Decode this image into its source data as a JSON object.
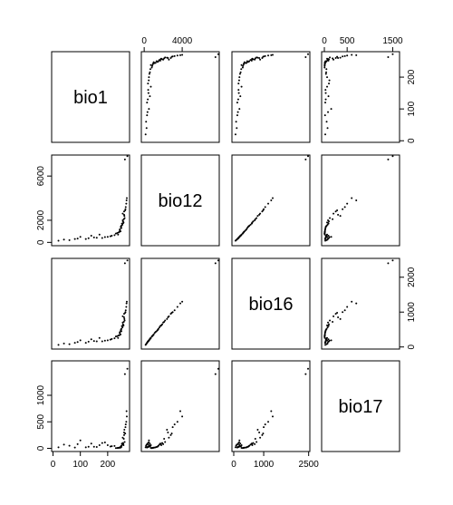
{
  "chart_data": {
    "type": "scatter_matrix",
    "color": "#000000",
    "variables": [
      {
        "name": "bio1",
        "lim": [
          -5,
          280
        ],
        "xticks": [
          0,
          100,
          200
        ],
        "yticks": [
          0,
          100,
          200
        ],
        "values": [
          250,
          255,
          260,
          245,
          240,
          265,
          258,
          262,
          230,
          248,
          252,
          268,
          270,
          255,
          244,
          238,
          260,
          263,
          215,
          200,
          180,
          150,
          120,
          90,
          60,
          40,
          20,
          100,
          140,
          170,
          250,
          256,
          259,
          261,
          247,
          243,
          235,
          266,
          269,
          272,
          225,
          210,
          190,
          160,
          130,
          80,
          254,
          257,
          264,
          249
        ]
      },
      {
        "name": "bio12",
        "lim": [
          -300,
          7900
        ],
        "xticks": [
          0,
          4000
        ],
        "yticks": [
          0,
          2000,
          6000
        ],
        "values": [
          1500,
          2000,
          2500,
          1200,
          900,
          3000,
          1800,
          2200,
          800,
          1400,
          1700,
          3500,
          4000,
          2600,
          1100,
          700,
          2800,
          7500,
          600,
          500,
          400,
          450,
          300,
          350,
          200,
          250,
          150,
          500,
          600,
          700,
          1300,
          1900,
          2100,
          2400,
          1000,
          950,
          850,
          3200,
          3800,
          7800,
          650,
          550,
          480,
          420,
          380,
          300,
          1600,
          1750,
          2900,
          1450
        ]
      },
      {
        "name": "bio16",
        "lim": [
          -60,
          2540
        ],
        "xticks": [
          0,
          1000,
          2500
        ],
        "yticks": [
          0,
          1000,
          2000
        ],
        "values": [
          520,
          700,
          850,
          430,
          330,
          1000,
          620,
          760,
          300,
          480,
          600,
          1150,
          1300,
          880,
          400,
          260,
          950,
          2400,
          230,
          190,
          160,
          170,
          120,
          140,
          80,
          100,
          60,
          190,
          220,
          260,
          450,
          650,
          720,
          800,
          360,
          340,
          310,
          1050,
          1250,
          2480,
          250,
          210,
          180,
          160,
          150,
          120,
          560,
          610,
          980,
          500
        ]
      },
      {
        "name": "bio17",
        "lim": [
          -60,
          1650
        ],
        "xticks": [
          0,
          500,
          1500
        ],
        "yticks": [
          0,
          500,
          1000
        ],
        "values": [
          50,
          80,
          300,
          20,
          10,
          400,
          60,
          120,
          5,
          30,
          90,
          500,
          600,
          200,
          15,
          8,
          250,
          1400,
          40,
          60,
          100,
          30,
          20,
          80,
          50,
          70,
          20,
          150,
          90,
          60,
          25,
          100,
          180,
          350,
          12,
          10,
          6,
          450,
          700,
          1500,
          45,
          35,
          110,
          25,
          30,
          15,
          70,
          85,
          280,
          40
        ]
      }
    ]
  }
}
